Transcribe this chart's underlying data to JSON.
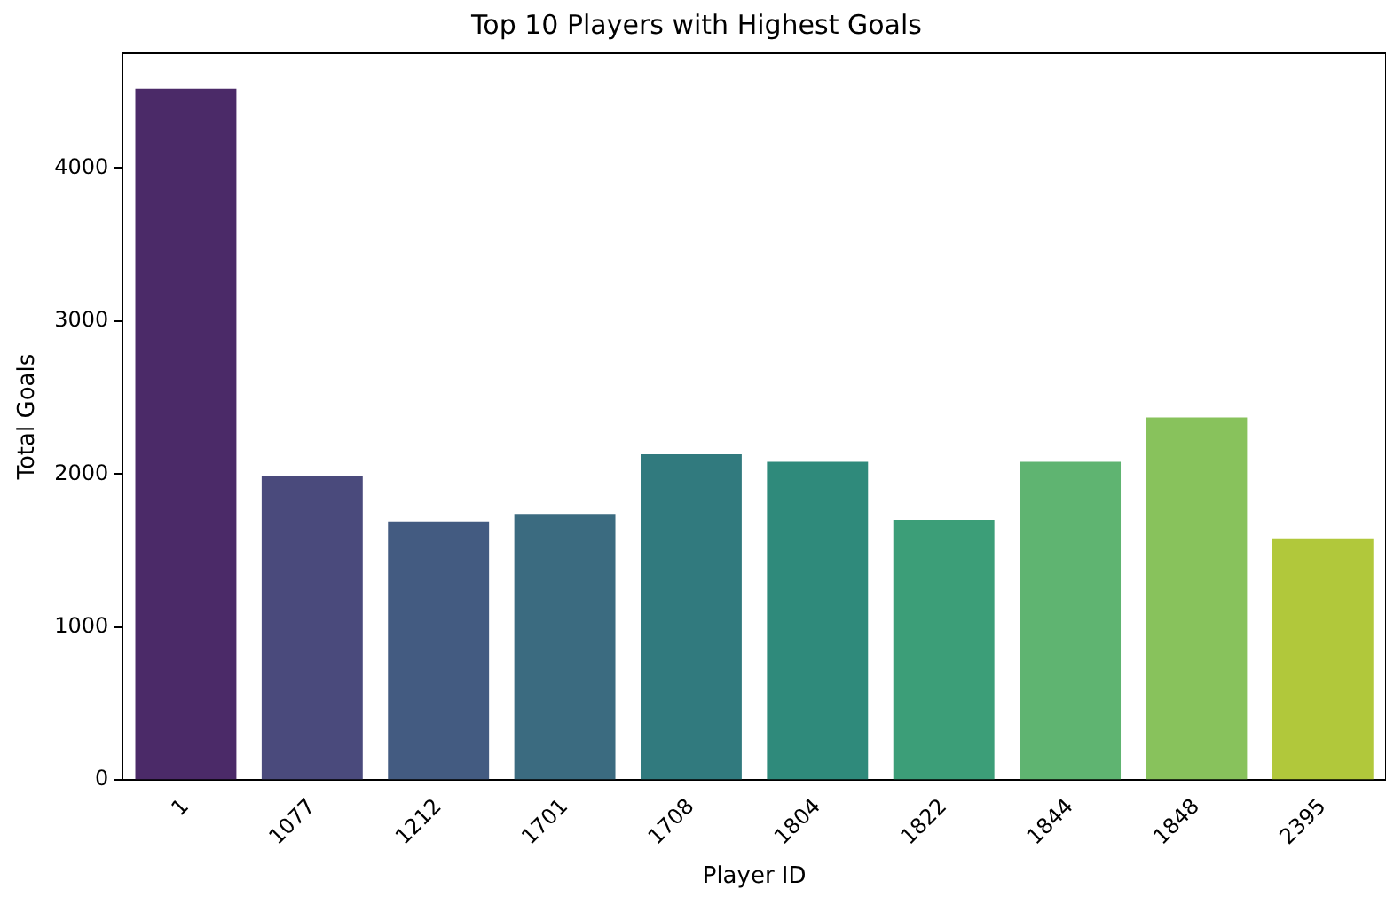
{
  "chart_data": {
    "type": "bar",
    "title": "Top 10 Players with Highest Goals",
    "xlabel": "Player ID",
    "ylabel": "Total Goals",
    "categories": [
      "1",
      "1077",
      "1212",
      "1701",
      "1708",
      "1804",
      "1822",
      "1844",
      "1848",
      "2395"
    ],
    "values": [
      4520,
      1990,
      1690,
      1740,
      2130,
      2080,
      1700,
      2080,
      2370,
      1580
    ],
    "colors": [
      "#4b2a68",
      "#4a4a7c",
      "#435b81",
      "#3b6b80",
      "#317a7e",
      "#2f8a7b",
      "#3c9e78",
      "#5fb471",
      "#88c25c",
      "#b1c83b"
    ],
    "ylim": [
      0,
      4750
    ],
    "yticks": [
      0,
      1000,
      2000,
      3000,
      4000
    ],
    "grid": false,
    "legend": false
  }
}
